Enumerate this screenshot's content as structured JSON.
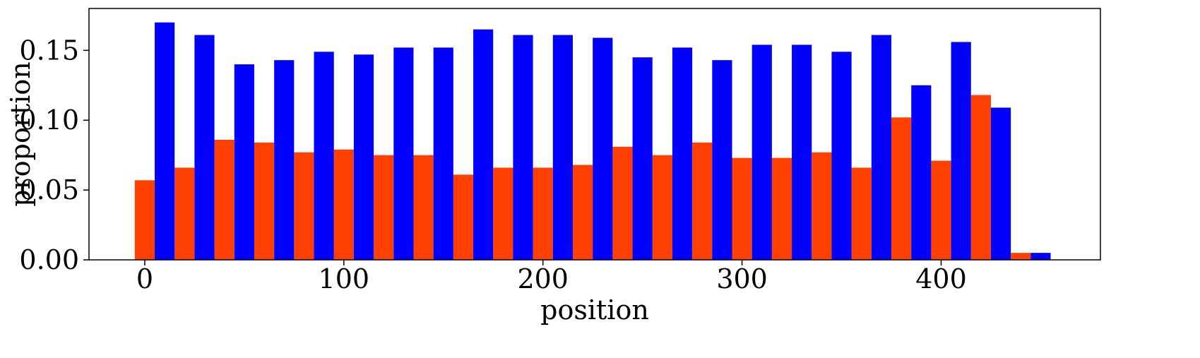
{
  "chart_data": {
    "type": "bar",
    "xlabel": "position",
    "ylabel": "proportion",
    "xlim": [
      -28,
      480
    ],
    "ylim": [
      0,
      0.18
    ],
    "bin_width": 20,
    "bin_starts": [
      -5,
      15,
      35,
      55,
      75,
      95,
      115,
      135,
      155,
      175,
      195,
      215,
      235,
      255,
      275,
      295,
      315,
      335,
      355,
      375,
      395,
      415,
      435
    ],
    "xticks": [
      0,
      100,
      200,
      300,
      400
    ],
    "yticks": [
      0.0,
      0.05,
      0.1,
      0.15
    ],
    "ytick_labels": [
      "0.00",
      "0.05",
      "0.10",
      "0.15"
    ],
    "grid": false,
    "series": [
      {
        "color": "#ff4000",
        "values": [
          0.057,
          0.066,
          0.086,
          0.084,
          0.077,
          0.079,
          0.075,
          0.075,
          0.061,
          0.066,
          0.066,
          0.068,
          0.081,
          0.075,
          0.084,
          0.073,
          0.073,
          0.077,
          0.066,
          0.102,
          0.071,
          0.118,
          0.005
        ]
      },
      {
        "color": "#0000ff",
        "values": [
          0.17,
          0.161,
          0.14,
          0.143,
          0.149,
          0.147,
          0.152,
          0.152,
          0.165,
          0.161,
          0.161,
          0.159,
          0.145,
          0.152,
          0.143,
          0.154,
          0.154,
          0.149,
          0.161,
          0.125,
          0.156,
          0.109,
          0.005
        ]
      }
    ]
  }
}
